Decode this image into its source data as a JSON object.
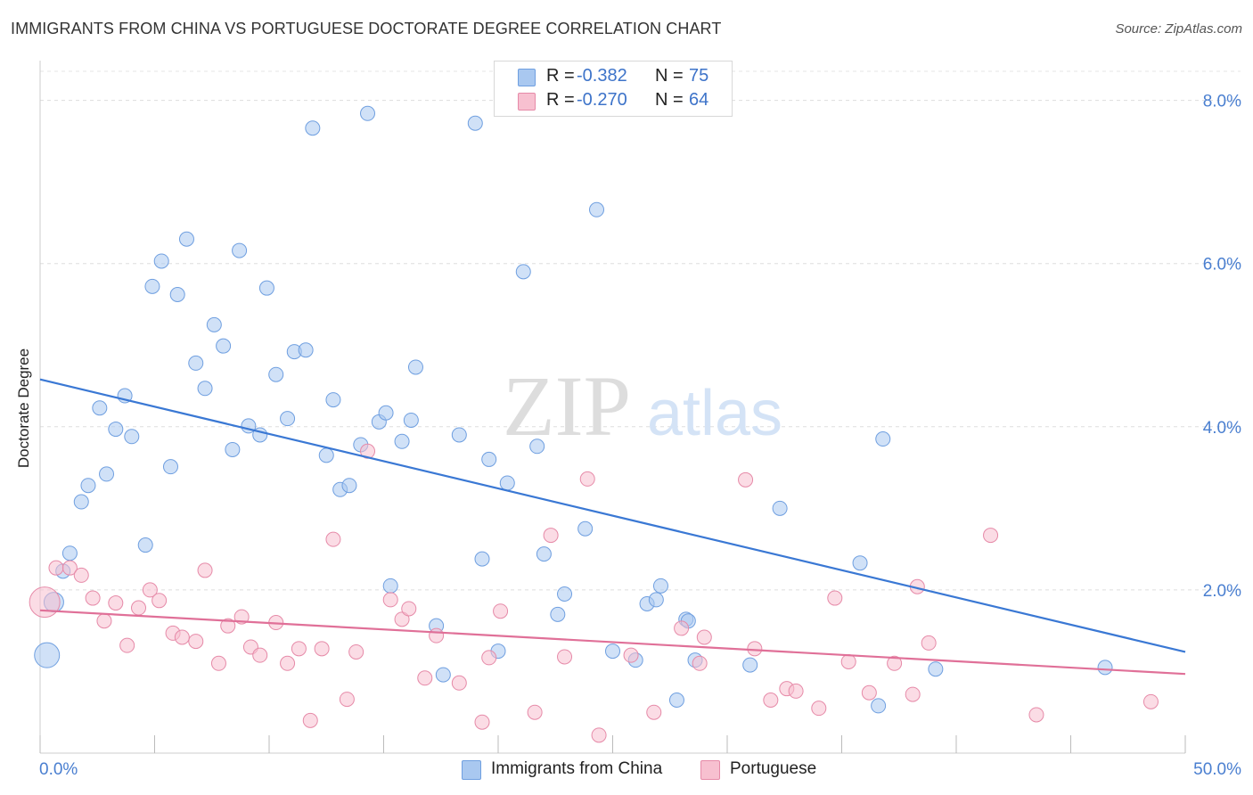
{
  "header": {
    "title": "IMMIGRANTS FROM CHINA VS PORTUGUESE DOCTORATE DEGREE CORRELATION CHART",
    "source": "Source: ZipAtlas.com"
  },
  "watermark": {
    "zip": "ZIP",
    "atlas": "atlas"
  },
  "stats": [
    {
      "r_label": "R =",
      "r_value": "-0.382",
      "n_label": "N =",
      "n_value": "75",
      "color": "#a9c8f0",
      "border": "#6f9fe0"
    },
    {
      "r_label": "R =",
      "r_value": "-0.270",
      "n_label": "N =",
      "n_value": "64",
      "color": "#f7c0d0",
      "border": "#e68aa8"
    }
  ],
  "legend": [
    {
      "label": "Immigrants from China",
      "color": "#a9c8f0",
      "border": "#6f9fe0"
    },
    {
      "label": "Portuguese",
      "color": "#f7c0d0",
      "border": "#e68aa8"
    }
  ],
  "chart_data": {
    "type": "scatter",
    "title": "IMMIGRANTS FROM CHINA VS PORTUGUESE DOCTORATE DEGREE CORRELATION CHART",
    "xlabel": "",
    "ylabel": "Doctorate Degree",
    "xlim": [
      0,
      50
    ],
    "ylim": [
      0,
      8.4
    ],
    "x_tick_labels": [
      "0.0%",
      "50.0%"
    ],
    "y_ticks": [
      2,
      4,
      6,
      8
    ],
    "y_tick_labels": [
      "2.0%",
      "4.0%",
      "6.0%",
      "8.0%"
    ],
    "grid": true,
    "series": [
      {
        "name": "Immigrants from China",
        "color": "#a9c8f0",
        "stroke": "#6f9fe0",
        "trend": {
          "x": [
            0,
            50
          ],
          "y": [
            4.58,
            1.24
          ],
          "color": "#3a78d4"
        },
        "points": [
          [
            0.3,
            1.2,
            28
          ],
          [
            0.6,
            1.85,
            22
          ],
          [
            1.0,
            2.23,
            16
          ],
          [
            1.3,
            2.45,
            16
          ],
          [
            1.8,
            3.08,
            16
          ],
          [
            2.1,
            3.28,
            16
          ],
          [
            2.6,
            4.23,
            16
          ],
          [
            2.9,
            3.42,
            16
          ],
          [
            3.3,
            3.97,
            16
          ],
          [
            3.7,
            4.38,
            16
          ],
          [
            4.0,
            3.88,
            16
          ],
          [
            4.6,
            2.55,
            16
          ],
          [
            4.9,
            5.72,
            16
          ],
          [
            5.3,
            6.03,
            16
          ],
          [
            5.7,
            3.51,
            16
          ],
          [
            6.0,
            5.62,
            16
          ],
          [
            6.4,
            6.3,
            16
          ],
          [
            6.8,
            4.78,
            16
          ],
          [
            7.2,
            4.47,
            16
          ],
          [
            7.6,
            5.25,
            16
          ],
          [
            8.0,
            4.99,
            16
          ],
          [
            8.4,
            3.72,
            16
          ],
          [
            8.7,
            6.16,
            16
          ],
          [
            9.1,
            4.01,
            16
          ],
          [
            9.6,
            3.9,
            16
          ],
          [
            9.9,
            5.7,
            16
          ],
          [
            10.3,
            4.64,
            16
          ],
          [
            10.8,
            4.1,
            16
          ],
          [
            11.1,
            4.92,
            16
          ],
          [
            11.6,
            4.94,
            16
          ],
          [
            11.9,
            7.66,
            16
          ],
          [
            12.5,
            3.65,
            16
          ],
          [
            12.8,
            4.33,
            16
          ],
          [
            13.1,
            3.23,
            16
          ],
          [
            13.5,
            3.28,
            16
          ],
          [
            14.0,
            3.78,
            16
          ],
          [
            14.3,
            7.84,
            16
          ],
          [
            14.8,
            4.06,
            16
          ],
          [
            15.1,
            4.17,
            16
          ],
          [
            15.8,
            3.82,
            16
          ],
          [
            16.2,
            4.08,
            16
          ],
          [
            16.4,
            4.73,
            16
          ],
          [
            15.3,
            2.05,
            16
          ],
          [
            17.3,
            1.56,
            16
          ],
          [
            17.6,
            0.96,
            16
          ],
          [
            18.3,
            3.9,
            16
          ],
          [
            19.0,
            7.72,
            16
          ],
          [
            19.3,
            2.38,
            16
          ],
          [
            19.6,
            3.6,
            16
          ],
          [
            20.0,
            1.25,
            16
          ],
          [
            20.4,
            3.31,
            16
          ],
          [
            21.1,
            5.9,
            16
          ],
          [
            21.7,
            3.76,
            16
          ],
          [
            22.0,
            2.44,
            16
          ],
          [
            22.6,
            1.7,
            16
          ],
          [
            22.9,
            1.95,
            16
          ],
          [
            23.8,
            2.75,
            16
          ],
          [
            24.3,
            6.66,
            16
          ],
          [
            25.0,
            1.25,
            16
          ],
          [
            26.0,
            1.14,
            16
          ],
          [
            26.5,
            1.83,
            16
          ],
          [
            26.9,
            1.88,
            16
          ],
          [
            27.1,
            2.05,
            16
          ],
          [
            27.8,
            0.65,
            16
          ],
          [
            28.2,
            1.64,
            16
          ],
          [
            28.3,
            1.62,
            16
          ],
          [
            28.6,
            1.14,
            16
          ],
          [
            29.8,
            7.96,
            16
          ],
          [
            31.0,
            1.08,
            16
          ],
          [
            32.3,
            3.0,
            16
          ],
          [
            35.8,
            2.33,
            16
          ],
          [
            36.8,
            3.85,
            16
          ],
          [
            36.6,
            0.58,
            16
          ],
          [
            39.1,
            1.03,
            16
          ],
          [
            46.5,
            1.05,
            16
          ]
        ]
      },
      {
        "name": "Portuguese",
        "color": "#f7c0d0",
        "stroke": "#e68aa8",
        "trend": {
          "x": [
            0,
            50
          ],
          "y": [
            1.75,
            0.97
          ],
          "color": "#e07098"
        },
        "points": [
          [
            0.2,
            1.85,
            34
          ],
          [
            0.7,
            2.27,
            16
          ],
          [
            1.3,
            2.27,
            16
          ],
          [
            1.8,
            2.18,
            16
          ],
          [
            2.3,
            1.9,
            16
          ],
          [
            2.8,
            1.62,
            16
          ],
          [
            3.3,
            1.84,
            16
          ],
          [
            3.8,
            1.32,
            16
          ],
          [
            4.3,
            1.78,
            16
          ],
          [
            4.8,
            2.0,
            16
          ],
          [
            5.2,
            1.87,
            16
          ],
          [
            5.8,
            1.47,
            16
          ],
          [
            6.2,
            1.42,
            16
          ],
          [
            6.8,
            1.37,
            16
          ],
          [
            7.2,
            2.24,
            16
          ],
          [
            7.8,
            1.1,
            16
          ],
          [
            8.2,
            1.56,
            16
          ],
          [
            8.8,
            1.67,
            16
          ],
          [
            9.2,
            1.3,
            16
          ],
          [
            9.6,
            1.2,
            16
          ],
          [
            10.3,
            1.6,
            16
          ],
          [
            10.8,
            1.1,
            16
          ],
          [
            11.3,
            1.28,
            16
          ],
          [
            11.8,
            0.4,
            16
          ],
          [
            12.3,
            1.28,
            16
          ],
          [
            12.8,
            2.62,
            16
          ],
          [
            13.4,
            0.66,
            16
          ],
          [
            13.8,
            1.24,
            16
          ],
          [
            14.3,
            3.7,
            16
          ],
          [
            15.3,
            1.88,
            16
          ],
          [
            15.8,
            1.64,
            16
          ],
          [
            16.1,
            1.77,
            16
          ],
          [
            16.8,
            0.92,
            16
          ],
          [
            17.3,
            1.44,
            16
          ],
          [
            18.3,
            0.86,
            16
          ],
          [
            19.3,
            0.38,
            16
          ],
          [
            19.6,
            1.17,
            16
          ],
          [
            20.1,
            1.74,
            16
          ],
          [
            21.6,
            0.5,
            16
          ],
          [
            22.3,
            2.67,
            16
          ],
          [
            22.9,
            1.18,
            16
          ],
          [
            23.9,
            3.36,
            16
          ],
          [
            24.4,
            0.22,
            16
          ],
          [
            25.8,
            1.2,
            16
          ],
          [
            26.8,
            0.5,
            16
          ],
          [
            28.0,
            1.53,
            16
          ],
          [
            28.8,
            1.1,
            16
          ],
          [
            29.0,
            1.42,
            16
          ],
          [
            30.8,
            3.35,
            16
          ],
          [
            31.2,
            1.28,
            16
          ],
          [
            31.9,
            0.65,
            16
          ],
          [
            32.6,
            0.79,
            16
          ],
          [
            33.0,
            0.76,
            16
          ],
          [
            34.0,
            0.55,
            16
          ],
          [
            34.7,
            1.9,
            16
          ],
          [
            35.3,
            1.12,
            16
          ],
          [
            36.2,
            0.74,
            16
          ],
          [
            37.3,
            1.1,
            16
          ],
          [
            38.1,
            0.72,
            16
          ],
          [
            38.3,
            2.04,
            16
          ],
          [
            38.8,
            1.35,
            16
          ],
          [
            41.5,
            2.67,
            16
          ],
          [
            43.5,
            0.47,
            16
          ],
          [
            48.5,
            0.63,
            16
          ]
        ]
      }
    ]
  }
}
